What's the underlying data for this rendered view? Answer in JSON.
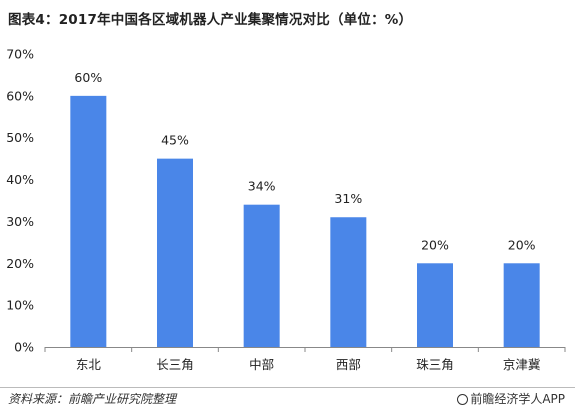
{
  "title": "图表4：2017年中国各区域机器人产业集聚情况对比（单位：%）",
  "footer": {
    "source": "资料来源：前瞻产业研究院整理",
    "brand": "前瞻经济学人APP"
  },
  "colors": {
    "bar": "#4a86e8",
    "axis": "#888888",
    "text": "#222222"
  },
  "chart_data": {
    "type": "bar",
    "categories": [
      "东北",
      "长三角",
      "中部",
      "西部",
      "珠三角",
      "京津冀"
    ],
    "values": [
      60,
      45,
      34,
      31,
      20,
      20
    ],
    "data_labels": [
      "60%",
      "45%",
      "34%",
      "31%",
      "20%",
      "20%"
    ],
    "y_ticks": [
      0,
      10,
      20,
      30,
      40,
      50,
      60,
      70
    ],
    "y_tick_labels": [
      "0%",
      "10%",
      "20%",
      "30%",
      "40%",
      "50%",
      "60%",
      "70%"
    ],
    "ylim": [
      0,
      70
    ],
    "grid": false,
    "legend": "none"
  }
}
